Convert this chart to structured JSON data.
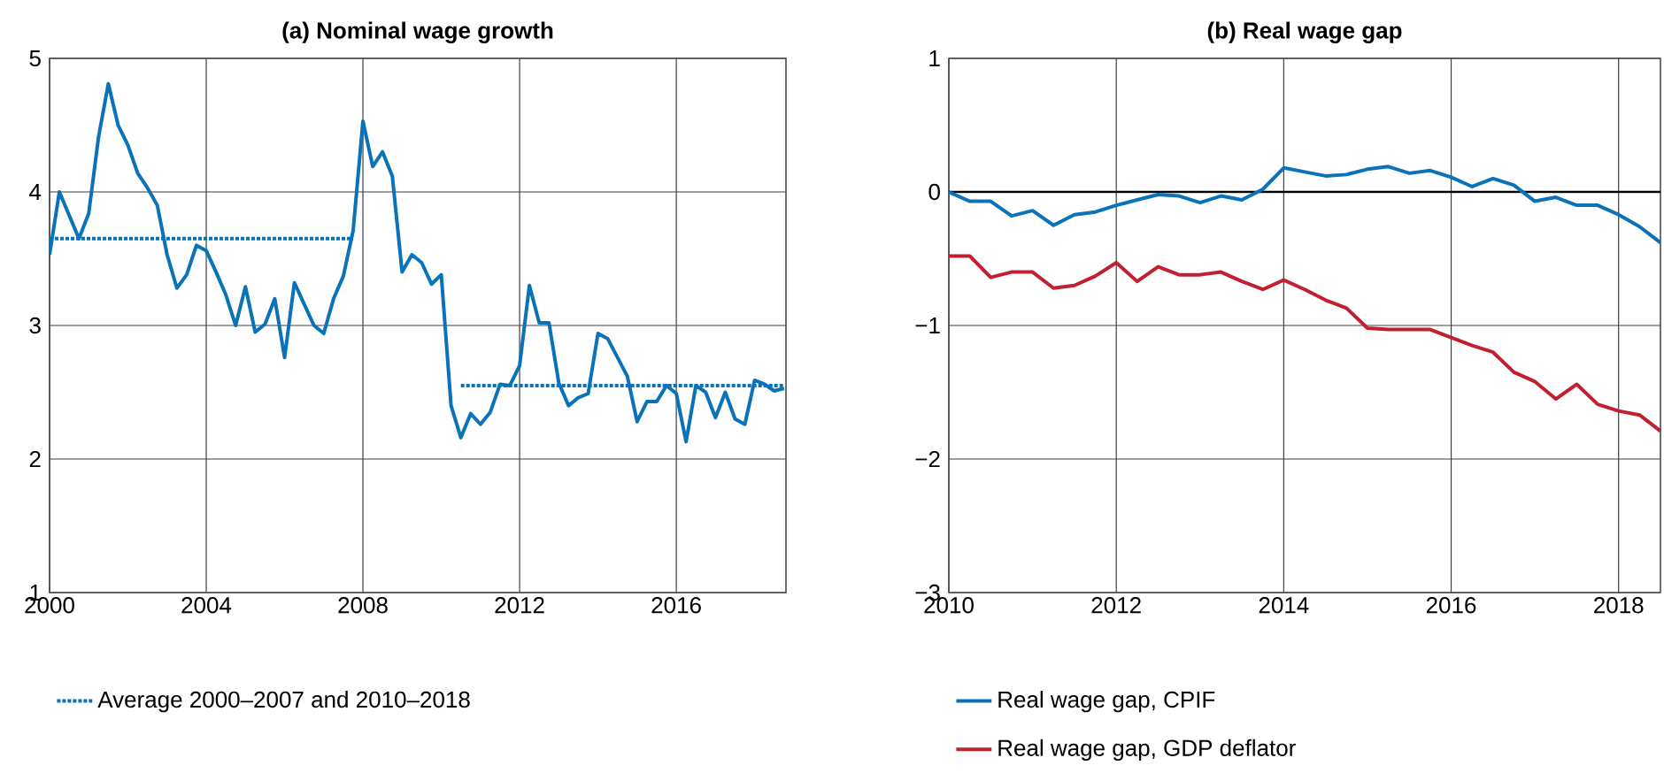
{
  "chart_data": [
    {
      "type": "line",
      "title": "(a) Nominal wage growth",
      "xlim": [
        2000,
        2018.8
      ],
      "ylim": [
        1,
        5
      ],
      "xticks": [
        2000,
        2004,
        2008,
        2012,
        2016
      ],
      "yticks": [
        1,
        2,
        3,
        4,
        5
      ],
      "grid": true,
      "legend": "bottom left",
      "series": [
        {
          "color": "#0a72b8",
          "x": [
            2000.0,
            2000.25,
            2000.75,
            2001.0,
            2001.25,
            2001.5,
            2001.75,
            2002.0,
            2002.25,
            2002.5,
            2002.75,
            2003.0,
            2003.25,
            2003.5,
            2003.75,
            2004.0,
            2004.25,
            2004.5,
            2004.75,
            2005.0,
            2005.25,
            2005.5,
            2005.75,
            2006.0,
            2006.25,
            2006.5,
            2006.75,
            2007.0,
            2007.25,
            2007.5,
            2007.75,
            2008.0,
            2008.25,
            2008.5,
            2008.75,
            2009.0,
            2009.25,
            2009.5,
            2009.75,
            2010.0,
            2010.25,
            2010.5,
            2010.75,
            2011.0,
            2011.25,
            2011.5,
            2011.75,
            2012.0,
            2012.25,
            2012.5,
            2012.75,
            2013.0,
            2013.25,
            2013.5,
            2013.75,
            2014.0,
            2014.25,
            2014.5,
            2014.75,
            2015.0,
            2015.25,
            2015.5,
            2015.75,
            2016.0,
            2016.25,
            2016.5,
            2016.75,
            2017.0,
            2017.25,
            2017.5,
            2017.75,
            2018.0,
            2018.25,
            2018.5,
            2018.75
          ],
          "values": [
            3.53,
            4.0,
            3.65,
            3.84,
            4.41,
            4.81,
            4.5,
            4.35,
            4.14,
            4.03,
            3.9,
            3.53,
            3.28,
            3.38,
            3.6,
            3.56,
            3.4,
            3.23,
            3.0,
            3.29,
            2.95,
            3.01,
            3.2,
            2.76,
            3.32,
            3.16,
            3.0,
            2.94,
            3.2,
            3.37,
            3.71,
            4.53,
            4.19,
            4.3,
            4.12,
            3.4,
            3.53,
            3.47,
            3.31,
            3.38,
            2.4,
            2.16,
            2.34,
            2.26,
            2.35,
            2.56,
            2.55,
            2.7,
            3.3,
            3.02,
            3.02,
            2.57,
            2.4,
            2.46,
            2.49,
            2.94,
            2.9,
            2.76,
            2.62,
            2.28,
            2.43,
            2.43,
            2.55,
            2.49,
            2.13,
            2.55,
            2.5,
            2.31,
            2.5,
            2.3,
            2.26,
            2.59,
            2.56,
            2.51,
            2.53
          ]
        },
        {
          "name": "Average 2000–2007 and 2010–2018",
          "color": "#0a72b8",
          "line_style": "dotted",
          "x": [
            2000,
            2007.75,
            2009,
            2010.5,
            2018.75
          ],
          "values": [
            3.65,
            3.65,
            null,
            2.55,
            2.55
          ]
        }
      ]
    },
    {
      "type": "line",
      "title": "(b) Real wage gap",
      "xlim": [
        2010,
        2018.5
      ],
      "ylim": [
        -3,
        1
      ],
      "xticks": [
        2010,
        2012,
        2014,
        2016,
        2018
      ],
      "yticks": [
        {
          "value": -3,
          "label": "−3"
        },
        {
          "value": -2,
          "label": "−2"
        },
        {
          "value": -1,
          "label": "−1"
        },
        0,
        1
      ],
      "grid": true,
      "legend": "bottom left",
      "ref_lines": [
        {
          "axis": "y",
          "value": 0,
          "color": "#000000"
        }
      ],
      "series": [
        {
          "name": "Real wage gap, CPIF",
          "color": "#0a72b8",
          "x": [
            2010.0,
            2010.25,
            2010.5,
            2010.75,
            2011.0,
            2011.25,
            2011.5,
            2011.75,
            2012.0,
            2012.25,
            2012.5,
            2012.75,
            2013.0,
            2013.25,
            2013.5,
            2013.75,
            2014.0,
            2014.25,
            2014.5,
            2014.75,
            2015.0,
            2015.25,
            2015.5,
            2015.75,
            2016.0,
            2016.25,
            2016.5,
            2016.75,
            2017.0,
            2017.25,
            2017.5,
            2017.75,
            2018.0,
            2018.25,
            2018.5
          ],
          "values": [
            0,
            -0.07,
            -0.07,
            -0.18,
            -0.14,
            -0.25,
            -0.17,
            -0.15,
            -0.1,
            -0.06,
            -0.02,
            -0.03,
            -0.08,
            -0.03,
            -0.06,
            0.02,
            0.18,
            0.15,
            0.12,
            0.13,
            0.17,
            0.19,
            0.14,
            0.16,
            0.11,
            0.04,
            0.1,
            0.05,
            -0.07,
            -0.04,
            -0.1,
            -0.1,
            -0.17,
            -0.26,
            -0.38
          ]
        },
        {
          "name": "Real wage gap, GDP deflator",
          "color": "#c0202f",
          "x": [
            2010.0,
            2010.25,
            2010.5,
            2010.75,
            2011.0,
            2011.25,
            2011.5,
            2011.75,
            2012.0,
            2012.25,
            2012.5,
            2012.75,
            2013.0,
            2013.25,
            2013.5,
            2013.75,
            2014.0,
            2014.25,
            2014.5,
            2014.75,
            2015.0,
            2015.25,
            2015.5,
            2015.75,
            2016.0,
            2016.25,
            2016.5,
            2016.75,
            2017.0,
            2017.25,
            2017.5,
            2017.75,
            2018.0,
            2018.25,
            2018.5
          ],
          "values": [
            -0.48,
            -0.48,
            -0.64,
            -0.6,
            -0.6,
            -0.72,
            -0.7,
            -0.63,
            -0.53,
            -0.67,
            -0.56,
            -0.62,
            -0.62,
            -0.6,
            -0.67,
            -0.73,
            -0.66,
            -0.73,
            -0.81,
            -0.87,
            -1.02,
            -1.03,
            -1.03,
            -1.03,
            -1.09,
            -1.15,
            -1.2,
            -1.35,
            -1.42,
            -1.55,
            -1.44,
            -1.59,
            -1.64,
            -1.67,
            -1.79
          ]
        }
      ]
    }
  ]
}
